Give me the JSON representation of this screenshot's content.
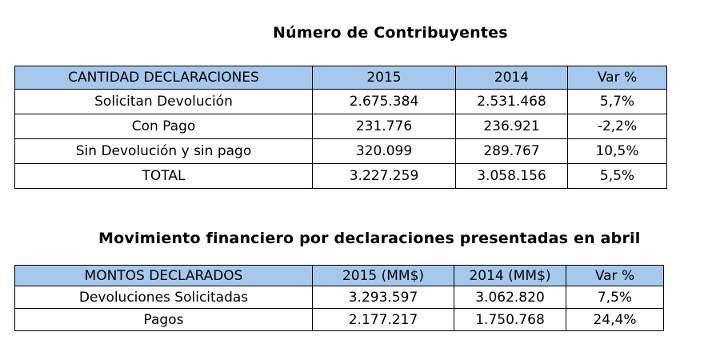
{
  "section1": {
    "title": "Número de Contribuyentes",
    "headers": [
      "CANTIDAD DECLARACIONES",
      "2015",
      "2014",
      "Var %"
    ],
    "rows": [
      [
        "Solicitan Devolución",
        "2.675.384",
        "2.531.468",
        "5,7%"
      ],
      [
        "Con Pago",
        "231.776",
        "236.921",
        "-2,2%"
      ],
      [
        "Sin Devolución y sin pago",
        "320.099",
        "289.767",
        "10,5%"
      ],
      [
        "TOTAL",
        "3.227.259",
        "3.058.156",
        "5,5%"
      ]
    ]
  },
  "section2": {
    "title": "Movimiento financiero por declaraciones presentadas en abril",
    "headers": [
      "MONTOS DECLARADOS",
      "2015 (MM$)",
      "2014 (MM$)",
      "Var %"
    ],
    "rows": [
      [
        "Devoluciones Solicitadas",
        "3.293.597",
        "3.062.820",
        "7,5%"
      ],
      [
        "Pagos",
        "2.177.217",
        "1.750.768",
        "24,4%"
      ]
    ]
  },
  "colors": {
    "header_background": "#a6c8ed",
    "border": "#000000"
  }
}
